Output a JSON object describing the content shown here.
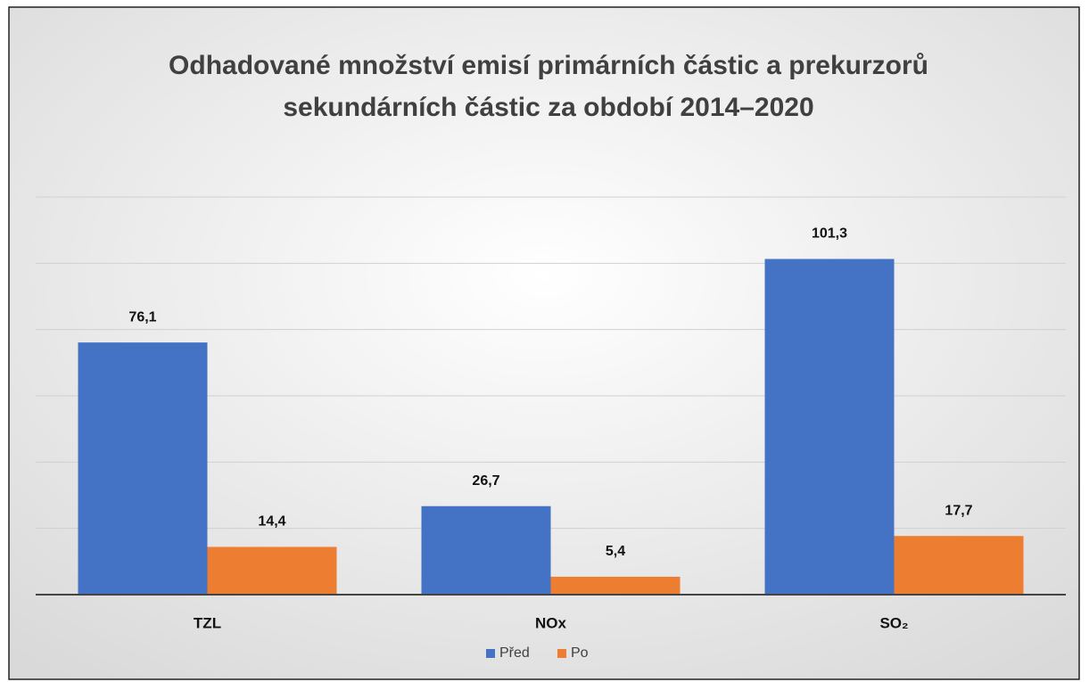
{
  "chart_data": {
    "type": "bar",
    "title": [
      "Odhadované množství emisí primárních částic a prekurzorů",
      "sekundárních částic za období 2014–2020"
    ],
    "categories": [
      "TZL",
      "NOx",
      "SO₂"
    ],
    "series": [
      {
        "name": "Před",
        "color": "#4472c4",
        "values": [
          76.1,
          26.7,
          101.3
        ],
        "value_labels": [
          "76,1",
          "26,7",
          "101,3"
        ]
      },
      {
        "name": "Po",
        "color": "#ed7d31",
        "values": [
          14.4,
          5.4,
          17.7
        ],
        "value_labels": [
          "14,4",
          "5,4",
          "17,7"
        ]
      }
    ],
    "ylim": [
      0,
      120
    ],
    "yticks": [
      0,
      20,
      40,
      60,
      80,
      100,
      120
    ],
    "grid": true,
    "legend": "bottom"
  }
}
